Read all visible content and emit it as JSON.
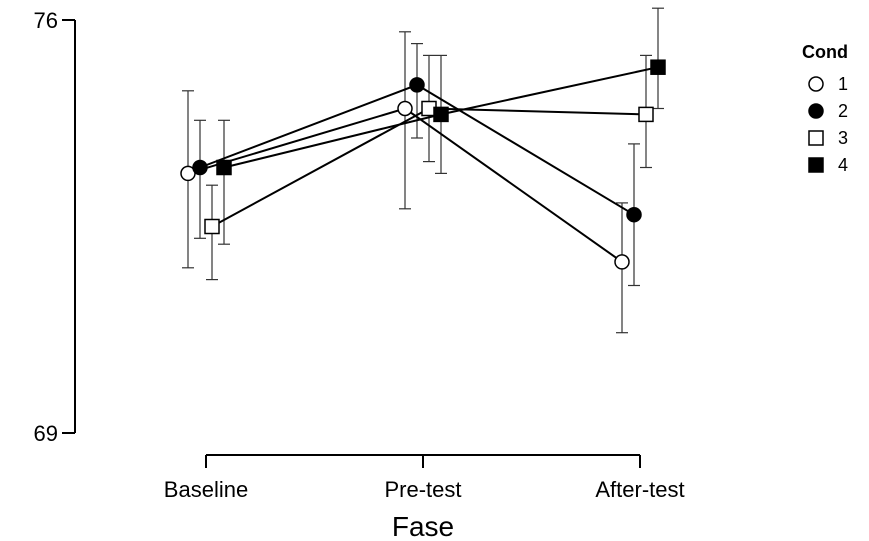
{
  "chart_data": {
    "type": "line",
    "title": "",
    "xlabel": "Fase",
    "ylabel": "",
    "categories": [
      "Baseline",
      "Pre-test",
      "After-test"
    ],
    "ylim": [
      69,
      76
    ],
    "yticks": [
      69,
      76
    ],
    "legend": {
      "title": "Cond",
      "placement": "right"
    },
    "grid": false,
    "series": [
      {
        "name": "1",
        "marker": "circle-open",
        "color": "#000000",
        "values": [
          73.4,
          74.5,
          71.9
        ],
        "err_low": [
          71.8,
          72.8,
          70.7
        ],
        "err_high": [
          74.8,
          75.8,
          72.9
        ]
      },
      {
        "name": "2",
        "marker": "circle-filled",
        "color": "#000000",
        "values": [
          73.5,
          74.9,
          72.7
        ],
        "err_low": [
          72.3,
          74.0,
          71.5
        ],
        "err_high": [
          74.3,
          75.6,
          73.9
        ]
      },
      {
        "name": "3",
        "marker": "square-open",
        "color": "#000000",
        "values": [
          72.5,
          74.5,
          74.4
        ],
        "err_low": [
          71.6,
          73.6,
          73.5
        ],
        "err_high": [
          73.2,
          75.4,
          75.4
        ]
      },
      {
        "name": "4",
        "marker": "square-filled",
        "color": "#000000",
        "values": [
          73.5,
          74.4,
          75.2
        ],
        "err_low": [
          72.2,
          73.4,
          74.5
        ],
        "err_high": [
          74.3,
          75.4,
          76.2
        ]
      }
    ]
  }
}
